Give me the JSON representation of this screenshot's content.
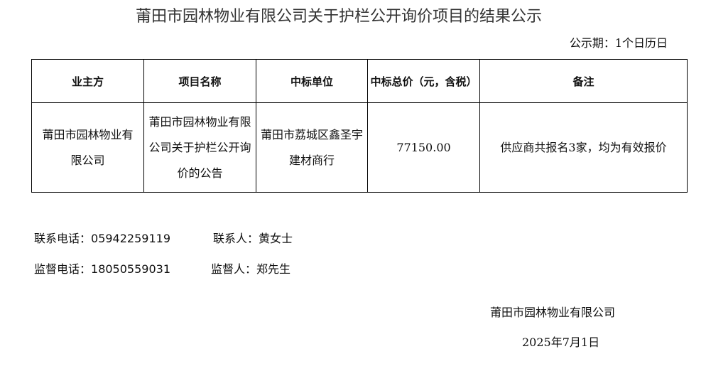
{
  "title": "莆田市园林物业有限公司关于护栏公开询价项目的结果公示",
  "period": "公示期：1个日历日",
  "table": {
    "headers": [
      "业主方",
      "项目名称",
      "中标单位",
      "中标总价（元，含税）",
      "备注"
    ],
    "rows": [
      [
        "莆田市园林物业有限公司",
        "莆田市园林物业有限公司关于护栏公开询价的公告",
        "莆田市荔城区鑫圣宇建材商行",
        "77150.00",
        "供应商共报名3家，均为有效报价"
      ]
    ]
  },
  "contact": {
    "phone_label": "联系电话：",
    "phone": "05942259119",
    "person_label": "联系人：",
    "person": "黄女士"
  },
  "supervision": {
    "phone_label": "监督电话：",
    "phone": "18050559031",
    "person_label": "监督人：",
    "person": "郑先生"
  },
  "signature": {
    "company": "莆田市园林物业有限公司",
    "date": "2025年7月1日"
  }
}
